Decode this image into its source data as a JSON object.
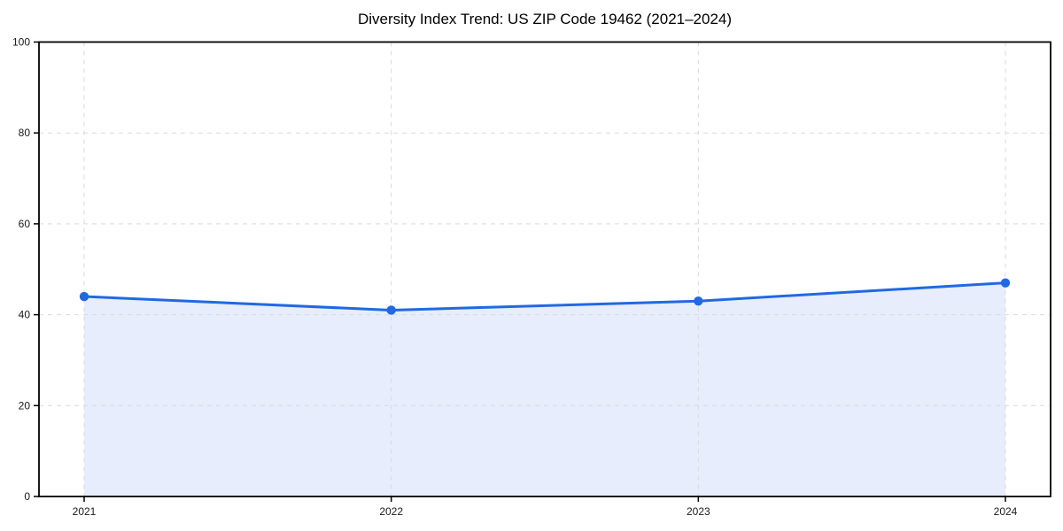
{
  "chart_data": {
    "type": "area",
    "title": "Diversity Index Trend: US ZIP Code 19462 (2021–2024)",
    "categories": [
      "2021",
      "2022",
      "2023",
      "2024"
    ],
    "values": [
      44,
      41,
      43,
      47
    ],
    "series_name": "Diversity Index",
    "xlabel": "",
    "ylabel": "",
    "ylim": [
      0,
      100
    ],
    "yticks": [
      0,
      20,
      40,
      60,
      80,
      100
    ],
    "grid": true,
    "grid_style": "dashed",
    "legend": false,
    "marker": "circle",
    "colors": {
      "line": "#2069e3",
      "marker": "#2069e3",
      "fill": "#e7edfc",
      "grid": "#d9d9d9",
      "spine": "#000000",
      "tick_text": "#1a1a1a",
      "background": "#ffffff"
    }
  }
}
